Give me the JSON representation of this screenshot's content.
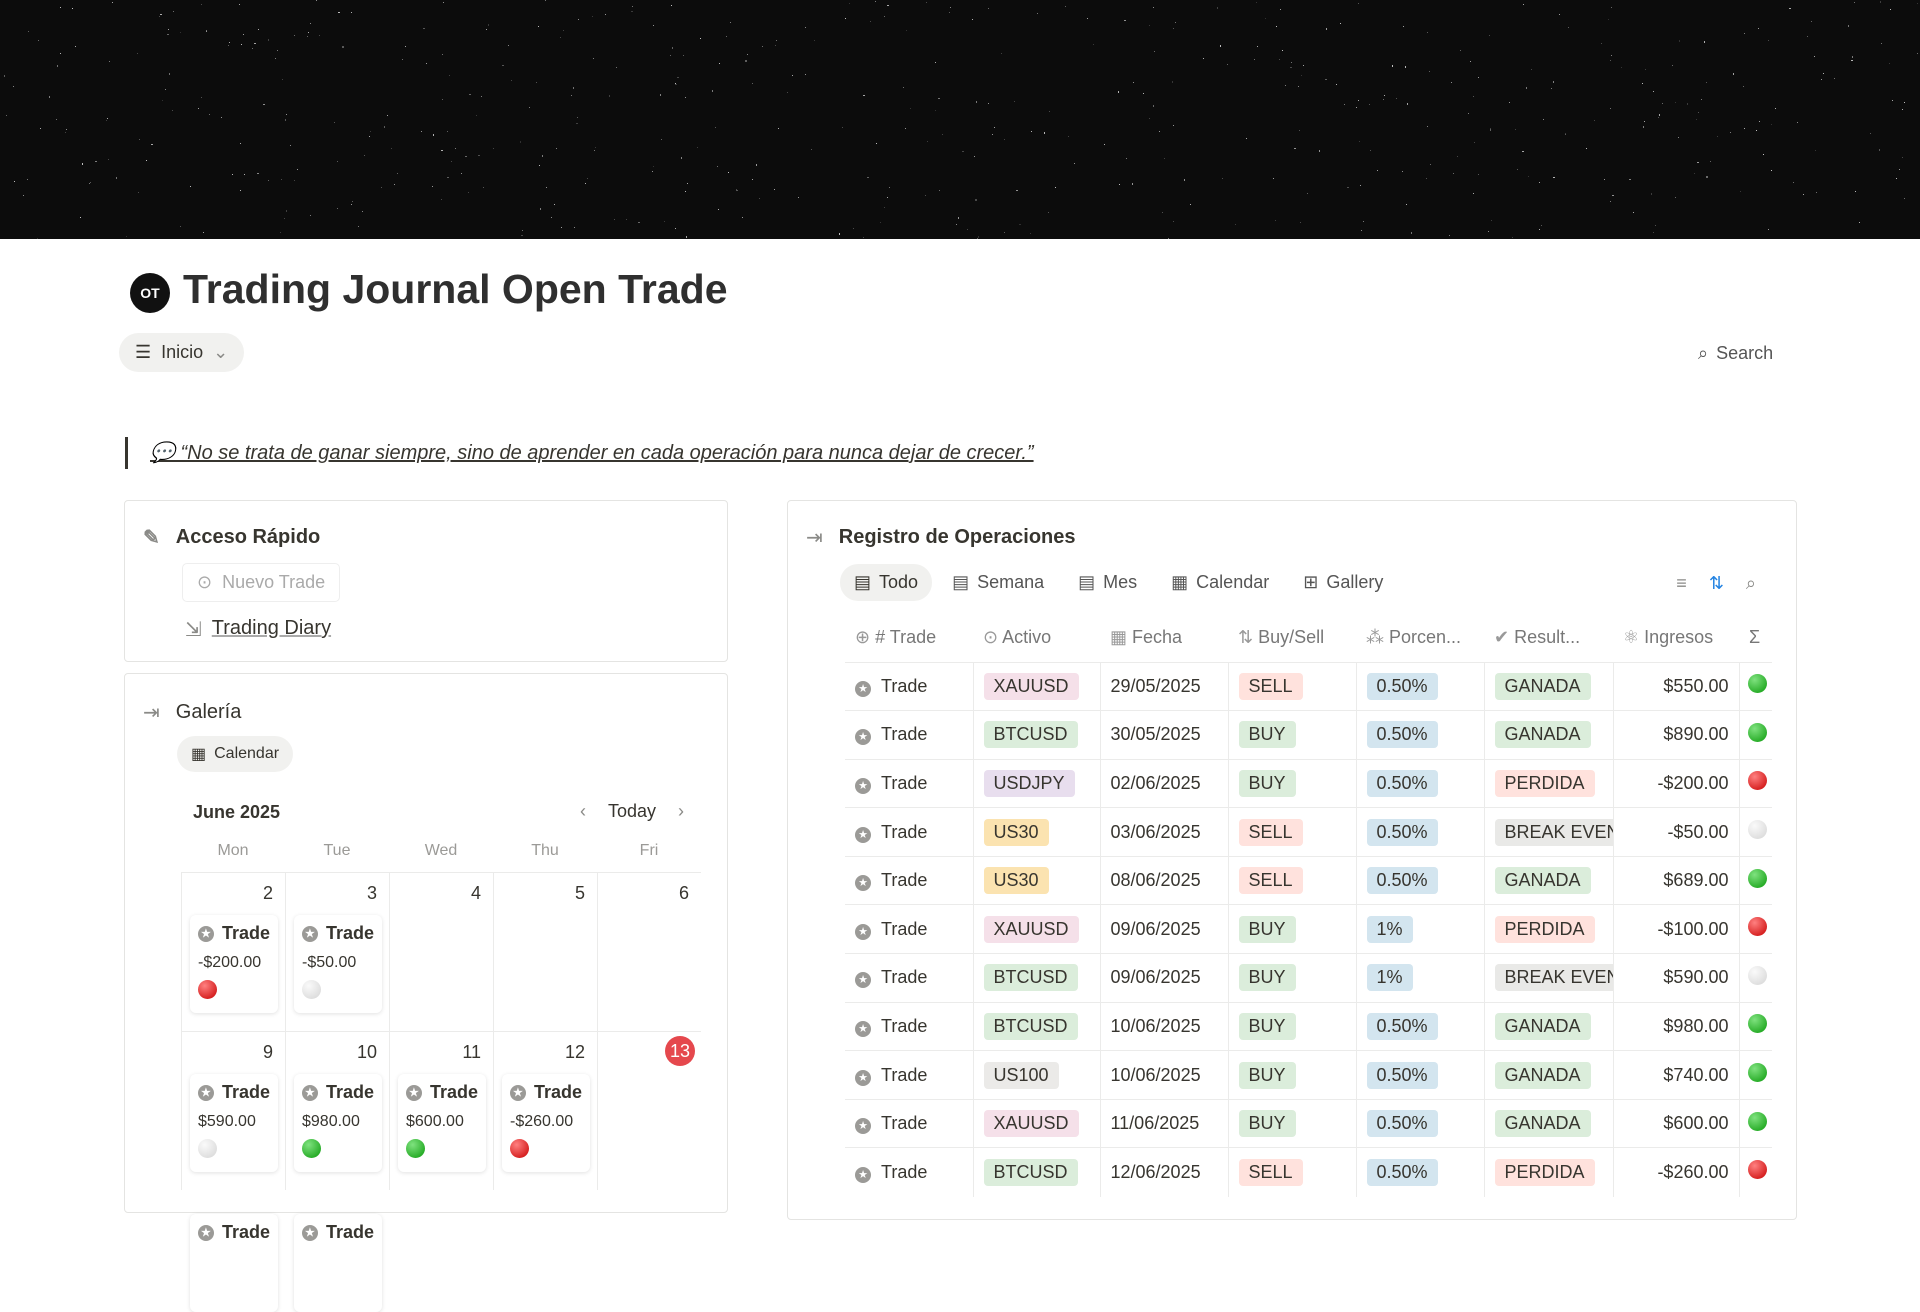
{
  "page": {
    "title": "Trading Journal Open Trade",
    "icon": "OT",
    "nav_label": "Inicio",
    "search_label": "Search",
    "quote": "💬 “No se trata de ganar siempre, sino de aprender en cada operación para nunca dejar de crecer.”"
  },
  "quick": {
    "title": "Acceso Rápido",
    "new_trade": "Nuevo Trade",
    "diary": "Trading Diary"
  },
  "gallery": {
    "title": "Galería",
    "view": "Calendar",
    "month": "June 2025",
    "today": "Today",
    "weekdays": [
      "Mon",
      "Tue",
      "Wed",
      "Thu",
      "Fri"
    ],
    "weeks": [
      [
        {
          "day": "2",
          "events": [
            {
              "title": "Trade",
              "value": "-$200.00",
              "status": "r"
            }
          ]
        },
        {
          "day": "3",
          "events": [
            {
              "title": "Trade",
              "value": "-$50.00",
              "status": "w"
            }
          ]
        },
        {
          "day": "4",
          "events": []
        },
        {
          "day": "5",
          "events": []
        },
        {
          "day": "6",
          "events": []
        }
      ],
      [
        {
          "day": "9",
          "events": [
            {
              "title": "Trade",
              "value": "$590.00",
              "status": "w"
            },
            {
              "title": "Trade"
            }
          ]
        },
        {
          "day": "10",
          "events": [
            {
              "title": "Trade",
              "value": "$980.00",
              "status": "g"
            },
            {
              "title": "Trade"
            }
          ]
        },
        {
          "day": "11",
          "events": [
            {
              "title": "Trade",
              "value": "$600.00",
              "status": "g"
            }
          ]
        },
        {
          "day": "12",
          "events": [
            {
              "title": "Trade",
              "value": "-$260.00",
              "status": "r"
            }
          ]
        },
        {
          "day": "13",
          "today": true,
          "events": []
        }
      ]
    ]
  },
  "registro": {
    "title": "Registro de Operaciones",
    "tabs": [
      {
        "label": "Todo",
        "icon": "table-icon"
      },
      {
        "label": "Semana",
        "icon": "table-icon"
      },
      {
        "label": "Mes",
        "icon": "table-icon"
      },
      {
        "label": "Calendar",
        "icon": "calendar-icon"
      },
      {
        "label": "Gallery",
        "icon": "gallery-icon"
      }
    ],
    "columns": [
      "# Trade",
      "Activo",
      "Fecha",
      "Buy/Sell",
      "Porcen...",
      "Result...",
      "Ingresos",
      "Σ"
    ],
    "column_icons": [
      "⊕",
      "⊙",
      "▦",
      "⇅",
      "⁂",
      "✔",
      "⚛",
      ""
    ],
    "rows": [
      [
        "Trade",
        "XAUUSD",
        "29/05/2025",
        "SELL",
        "0.50%",
        "GANADA",
        "$550.00",
        "g"
      ],
      [
        "Trade",
        "BTCUSD",
        "30/05/2025",
        "BUY",
        "0.50%",
        "GANADA",
        "$890.00",
        "g"
      ],
      [
        "Trade",
        "USDJPY",
        "02/06/2025",
        "BUY",
        "0.50%",
        "PERDIDA",
        "-$200.00",
        "r"
      ],
      [
        "Trade",
        "US30",
        "03/06/2025",
        "SELL",
        "0.50%",
        "BREAK EVEN",
        "-$50.00",
        "w"
      ],
      [
        "Trade",
        "US30",
        "08/06/2025",
        "SELL",
        "0.50%",
        "GANADA",
        "$689.00",
        "g"
      ],
      [
        "Trade",
        "XAUUSD",
        "09/06/2025",
        "BUY",
        "1%",
        "PERDIDA",
        "-$100.00",
        "r"
      ],
      [
        "Trade",
        "BTCUSD",
        "09/06/2025",
        "BUY",
        "1%",
        "BREAK EVEN",
        "$590.00",
        "w"
      ],
      [
        "Trade",
        "BTCUSD",
        "10/06/2025",
        "BUY",
        "0.50%",
        "GANADA",
        "$980.00",
        "g"
      ],
      [
        "Trade",
        "US100",
        "10/06/2025",
        "BUY",
        "0.50%",
        "GANADA",
        "$740.00",
        "g"
      ],
      [
        "Trade",
        "XAUUSD",
        "11/06/2025",
        "BUY",
        "0.50%",
        "GANADA",
        "$600.00",
        "g"
      ],
      [
        "Trade",
        "BTCUSD",
        "12/06/2025",
        "SELL",
        "0.50%",
        "PERDIDA",
        "-$260.00",
        "r"
      ]
    ]
  },
  "colors": {
    "XAUUSD": "#f5e0e9",
    "BTCUSD": "#dbeddb",
    "USDJPY": "#e8deee",
    "US30": "#fbe3b0",
    "US100": "#ebeae8",
    "SELL": "#ffe2dd",
    "BUY": "#dbeddb",
    "pct": "#d3e5ef",
    "GANADA": "#dbeddb",
    "PERDIDA": "#ffe2dd",
    "BREAK EVEN": "#e9e9e7",
    "accent": "#2383e2",
    "today": "#e5484d"
  }
}
